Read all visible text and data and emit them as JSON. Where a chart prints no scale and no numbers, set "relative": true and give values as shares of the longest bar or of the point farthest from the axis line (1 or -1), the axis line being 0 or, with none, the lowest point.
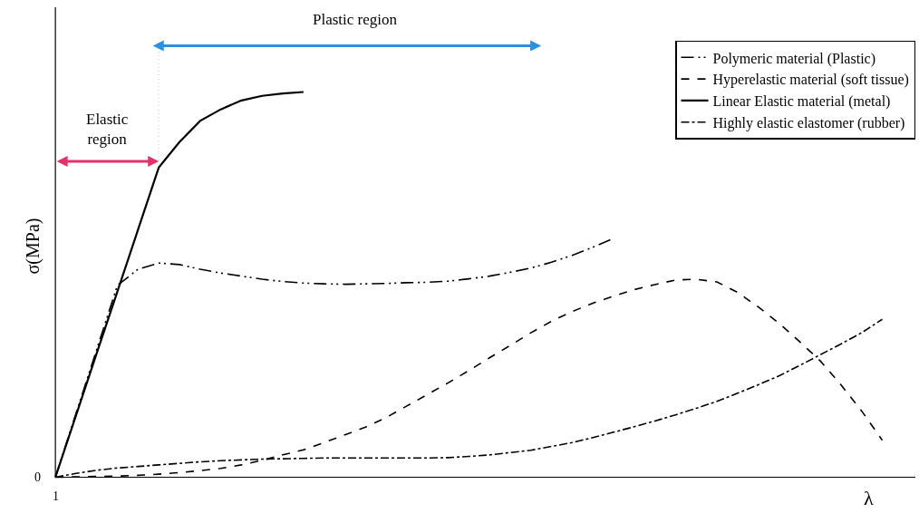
{
  "chart_data": {
    "type": "line",
    "relative": true,
    "xlabel": "λ",
    "ylabel": "σ(MPa)",
    "legend": "top right",
    "categories": [
      null,
      null,
      null,
      null,
      null,
      null,
      null,
      null,
      null,
      null,
      null,
      null,
      null,
      null,
      null,
      null,
      null,
      null,
      null,
      null,
      null,
      null,
      null,
      null,
      null,
      null,
      null,
      null,
      null,
      null,
      null,
      null,
      null,
      null,
      null,
      null,
      null,
      null,
      null,
      null,
      null
    ],
    "series": [
      {
        "name": "Polymeric material (Plastic)",
        "color": "#000000",
        "line_style": "dashdotdot",
        "values": [
          0,
          0.166,
          0.332,
          0.498,
          0.54,
          0.556,
          0.552,
          0.54,
          0.53,
          0.522,
          0.514,
          0.508,
          0.504,
          0.502,
          0.501,
          0.502,
          0.503,
          0.505,
          0.506,
          0.509,
          0.515,
          0.522,
          0.532,
          0.543,
          0.558,
          0.576,
          0.597,
          0.62,
          null,
          null,
          null,
          null,
          null,
          null,
          null,
          null,
          null,
          null,
          null,
          null,
          null
        ]
      },
      {
        "name": "Hyperelastic material (soft tissue)",
        "color": "#000000",
        "line_style": "dashed",
        "values": [
          0,
          0.001,
          0.002,
          0.003,
          0.005,
          0.008,
          0.012,
          0.017,
          0.023,
          0.032,
          0.044,
          0.058,
          0.071,
          0.09,
          0.11,
          0.13,
          0.155,
          0.185,
          0.215,
          0.245,
          0.277,
          0.31,
          0.342,
          0.375,
          0.405,
          0.43,
          0.452,
          0.47,
          0.487,
          0.5,
          0.512,
          0.514,
          0.507,
          0.48,
          0.442,
          0.4,
          0.352,
          0.302,
          0.24,
          0.172,
          0.096
        ]
      },
      {
        "name": "Linear Elastic material (metal)",
        "color": "#000000",
        "line_style": "solid",
        "values": [
          0,
          0.161,
          0.322,
          0.482,
          0.643,
          0.804,
          0.87,
          0.925,
          0.955,
          0.978,
          0.99,
          0.996,
          1.0,
          null,
          null,
          null,
          null,
          null,
          null,
          null,
          null,
          null,
          null,
          null,
          null,
          null,
          null,
          null,
          null,
          null,
          null,
          null,
          null,
          null,
          null,
          null,
          null,
          null,
          null,
          null,
          null
        ]
      },
      {
        "name": "Highly elastic elastomer (rubber)",
        "color": "#000000",
        "line_style": "dashdot",
        "values": [
          0,
          0.01,
          0.018,
          0.024,
          0.028,
          0.032,
          0.036,
          0.04,
          0.043,
          0.045,
          0.047,
          0.048,
          0.049,
          0.05,
          0.05,
          0.05,
          0.05,
          0.05,
          0.05,
          0.051,
          0.054,
          0.058,
          0.064,
          0.07,
          0.08,
          0.09,
          0.103,
          0.117,
          0.131,
          0.146,
          0.162,
          0.179,
          0.197,
          0.218,
          0.24,
          0.263,
          0.29,
          0.318,
          0.346,
          0.375,
          0.41
        ]
      }
    ],
    "ref_lines": [
      {
        "axis": "x",
        "color": "#5b9bd5",
        "line_style": "dotted"
      }
    ],
    "annotations": [
      "Plastic region",
      "Elastic\nregion",
      "0",
      "1"
    ]
  }
}
